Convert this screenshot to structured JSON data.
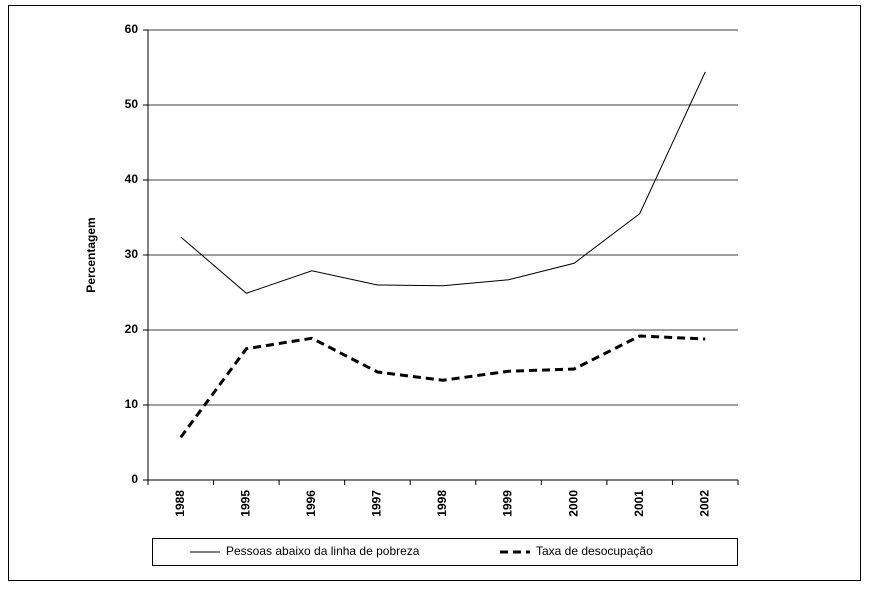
{
  "chart_data": {
    "type": "line",
    "y_label": "Percentagem",
    "categories": [
      "1988",
      "1995",
      "1996",
      "1997",
      "1998",
      "1999",
      "2000",
      "2001",
      "2002"
    ],
    "series": [
      {
        "name": "Pessoas abaixo da linha de pobreza",
        "color": "#000000",
        "dash": "solid",
        "values": [
          32.4,
          24.9,
          27.9,
          26.0,
          25.9,
          26.7,
          28.9,
          35.5,
          54.4
        ]
      },
      {
        "name": "Taxa de desocupação",
        "color": "#000000",
        "dash": "dashed",
        "values": [
          5.7,
          17.5,
          18.9,
          14.4,
          13.3,
          14.5,
          14.8,
          19.2,
          18.8
        ]
      }
    ],
    "ylim": [
      0,
      60
    ],
    "yticks": [
      0,
      10,
      20,
      30,
      40,
      50,
      60
    ],
    "grid": true,
    "legend": "bottom"
  }
}
